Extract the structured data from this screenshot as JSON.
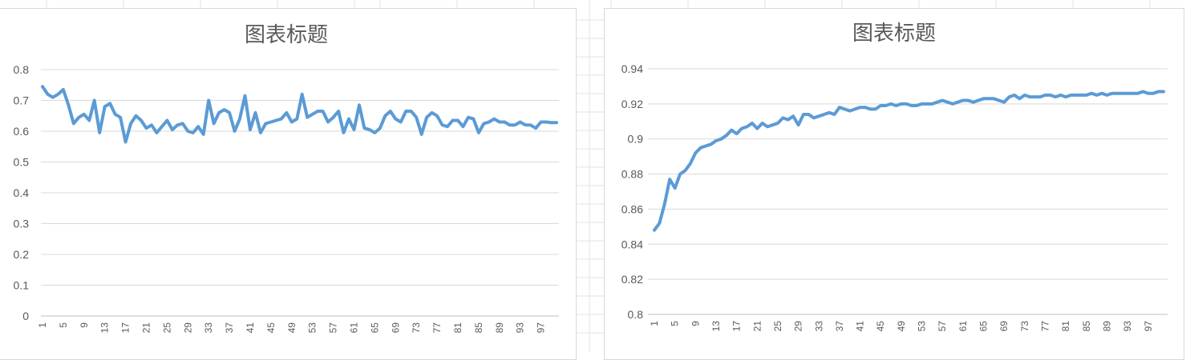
{
  "theme": {
    "series_color": "#5b9bd5",
    "grid_color": "#d9d9d9",
    "text_color": "#595959"
  },
  "chart_data": [
    {
      "type": "line",
      "title": "图表标题",
      "xlabel": "",
      "ylabel": "",
      "ylim": [
        0,
        0.8
      ],
      "yticks": [
        "0",
        "0.1",
        "0.2",
        "0.3",
        "0.4",
        "0.5",
        "0.6",
        "0.7",
        "0.8"
      ],
      "xticks": [
        "1",
        "5",
        "9",
        "13",
        "17",
        "21",
        "25",
        "29",
        "33",
        "37",
        "41",
        "45",
        "49",
        "53",
        "57",
        "61",
        "65",
        "69",
        "73",
        "77",
        "81",
        "85",
        "89",
        "93",
        "97"
      ],
      "grid": true,
      "legend": "none",
      "series": [
        {
          "x": [
            1,
            2,
            3,
            4,
            5,
            6,
            7,
            8,
            9,
            10,
            11,
            12,
            13,
            14,
            15,
            16,
            17,
            18,
            19,
            20,
            21,
            22,
            23,
            24,
            25,
            26,
            27,
            28,
            29,
            30,
            31,
            32,
            33,
            34,
            35,
            36,
            37,
            38,
            39,
            40,
            41,
            42,
            43,
            44,
            45,
            46,
            47,
            48,
            49,
            50,
            51,
            52,
            53,
            54,
            55,
            56,
            57,
            58,
            59,
            60,
            61,
            62,
            63,
            64,
            65,
            66,
            67,
            68,
            69,
            70,
            71,
            72,
            73,
            74,
            75,
            76,
            77,
            78,
            79,
            80,
            81,
            82,
            83,
            84,
            85,
            86,
            87,
            88,
            89,
            90,
            91,
            92,
            93,
            94,
            95,
            96,
            97,
            98,
            99,
            100
          ],
          "values": [
            0.745,
            0.72,
            0.71,
            0.72,
            0.735,
            0.685,
            0.625,
            0.645,
            0.655,
            0.635,
            0.7,
            0.595,
            0.68,
            0.69,
            0.655,
            0.645,
            0.565,
            0.625,
            0.65,
            0.635,
            0.61,
            0.62,
            0.595,
            0.615,
            0.635,
            0.605,
            0.62,
            0.625,
            0.6,
            0.595,
            0.615,
            0.59,
            0.7,
            0.625,
            0.66,
            0.67,
            0.66,
            0.6,
            0.64,
            0.715,
            0.605,
            0.66,
            0.595,
            0.625,
            0.63,
            0.635,
            0.64,
            0.66,
            0.63,
            0.64,
            0.72,
            0.645,
            0.655,
            0.665,
            0.665,
            0.63,
            0.645,
            0.665,
            0.595,
            0.64,
            0.605,
            0.685,
            0.61,
            0.605,
            0.595,
            0.61,
            0.65,
            0.665,
            0.64,
            0.63,
            0.665,
            0.665,
            0.645,
            0.59,
            0.645,
            0.66,
            0.65,
            0.62,
            0.615,
            0.635,
            0.635,
            0.615,
            0.645,
            0.64,
            0.595,
            0.625,
            0.63,
            0.64,
            0.63,
            0.63,
            0.62,
            0.62,
            0.63,
            0.62,
            0.62,
            0.61,
            0.63,
            0.63,
            0.628,
            0.628
          ]
        }
      ]
    },
    {
      "type": "line",
      "title": "图表标题",
      "xlabel": "",
      "ylabel": "",
      "ylim": [
        0.8,
        0.94
      ],
      "yticks": [
        "0.8",
        "0.82",
        "0.84",
        "0.86",
        "0.88",
        "0.9",
        "0.92",
        "0.94"
      ],
      "xticks": [
        "1",
        "5",
        "9",
        "13",
        "17",
        "21",
        "25",
        "29",
        "33",
        "37",
        "41",
        "45",
        "49",
        "53",
        "57",
        "61",
        "65",
        "69",
        "73",
        "77",
        "81",
        "85",
        "89",
        "93",
        "97"
      ],
      "grid": true,
      "legend": "none",
      "series": [
        {
          "x": [
            1,
            2,
            3,
            4,
            5,
            6,
            7,
            8,
            9,
            10,
            11,
            12,
            13,
            14,
            15,
            16,
            17,
            18,
            19,
            20,
            21,
            22,
            23,
            24,
            25,
            26,
            27,
            28,
            29,
            30,
            31,
            32,
            33,
            34,
            35,
            36,
            37,
            38,
            39,
            40,
            41,
            42,
            43,
            44,
            45,
            46,
            47,
            48,
            49,
            50,
            51,
            52,
            53,
            54,
            55,
            56,
            57,
            58,
            59,
            60,
            61,
            62,
            63,
            64,
            65,
            66,
            67,
            68,
            69,
            70,
            71,
            72,
            73,
            74,
            75,
            76,
            77,
            78,
            79,
            80,
            81,
            82,
            83,
            84,
            85,
            86,
            87,
            88,
            89,
            90,
            91,
            92,
            93,
            94,
            95,
            96,
            97,
            98,
            99,
            100
          ],
          "values": [
            0.848,
            0.852,
            0.863,
            0.877,
            0.872,
            0.88,
            0.882,
            0.886,
            0.892,
            0.895,
            0.896,
            0.897,
            0.899,
            0.9,
            0.902,
            0.905,
            0.903,
            0.906,
            0.907,
            0.909,
            0.906,
            0.909,
            0.907,
            0.908,
            0.909,
            0.912,
            0.911,
            0.913,
            0.908,
            0.914,
            0.914,
            0.912,
            0.913,
            0.914,
            0.915,
            0.914,
            0.918,
            0.917,
            0.916,
            0.917,
            0.918,
            0.918,
            0.917,
            0.917,
            0.919,
            0.919,
            0.92,
            0.919,
            0.92,
            0.92,
            0.919,
            0.919,
            0.92,
            0.92,
            0.92,
            0.921,
            0.922,
            0.921,
            0.92,
            0.921,
            0.922,
            0.922,
            0.921,
            0.922,
            0.923,
            0.923,
            0.923,
            0.922,
            0.921,
            0.924,
            0.925,
            0.923,
            0.925,
            0.924,
            0.924,
            0.924,
            0.925,
            0.925,
            0.924,
            0.925,
            0.924,
            0.925,
            0.925,
            0.925,
            0.925,
            0.926,
            0.925,
            0.926,
            0.925,
            0.926,
            0.926,
            0.926,
            0.926,
            0.926,
            0.926,
            0.927,
            0.926,
            0.926,
            0.927,
            0.927
          ]
        }
      ]
    }
  ]
}
